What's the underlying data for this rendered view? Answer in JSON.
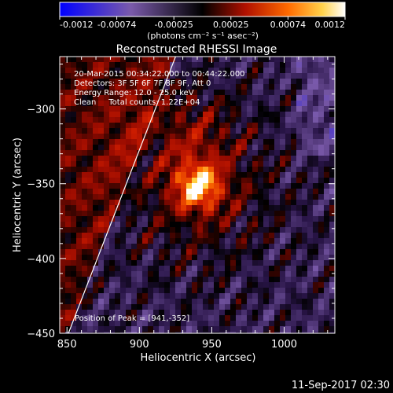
{
  "chart_data": {
    "type": "heatmap",
    "title": "Reconstructed RHESSI Image",
    "xlabel": "Heliocentric X (arcsec)",
    "ylabel": "Heliocentric Y (arcsec)",
    "xlim": [
      845,
      1035
    ],
    "ylim": [
      -450,
      -265
    ],
    "x_ticks": [
      850,
      900,
      950,
      1000
    ],
    "y_ticks": [
      -300,
      -350,
      -400,
      -450
    ],
    "colorbar": {
      "range": [
        -0.0012,
        0.0012
      ],
      "tick_labels": [
        "-0.0012",
        "-0.00074",
        "-0.00025",
        "0.00025",
        "0.00074",
        "0.0012"
      ],
      "unit_label": "(photons cm⁻² s⁻¹ asec⁻²)"
    },
    "info_lines": [
      "20-Mar-2015 00:34:22.000 to 00:44:22.000",
      "Detectors: 3F 5F 6F 7F 8F 9F, Att 0",
      "Energy Range: 12.0 - 25.0 keV",
      "Clean     Total counts: 1.22E+04"
    ],
    "peak_text": "Position of Peak = [941,-352]",
    "peak": [
      941,
      -352
    ],
    "peak_value": 0.0012,
    "limb_line": [
      [
        851,
        -450
      ],
      [
        925,
        -265
      ]
    ],
    "footer_date": "11-Sep-2017 02:30"
  }
}
